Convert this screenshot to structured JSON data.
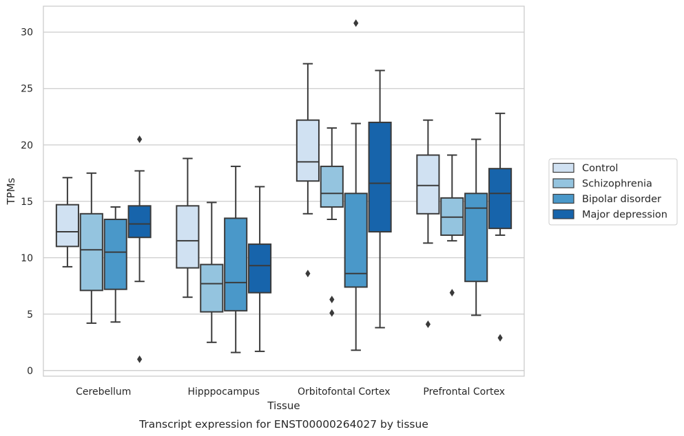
{
  "chart_data": {
    "type": "box",
    "caption": "Transcript expression for ENST00000264027 by tissue",
    "xlabel": "Tissue",
    "ylabel": "TPMs",
    "ylim": [
      -0.5,
      32.3
    ],
    "yticks": [
      0,
      5,
      10,
      15,
      20,
      25,
      30
    ],
    "grid": "horizontal",
    "legend_position": "right",
    "categories": [
      "Cerebellum",
      "Hipppocampus",
      "Orbitofontal Cortex",
      "Prefrontal Cortex"
    ],
    "series": [
      {
        "name": "Control",
        "color": "#d0e1f2",
        "boxes": [
          {
            "min": 9.2,
            "q1": 11.0,
            "median": 12.3,
            "q3": 14.7,
            "max": 17.1,
            "outliers": []
          },
          {
            "min": 6.5,
            "q1": 9.1,
            "median": 11.5,
            "q3": 14.6,
            "max": 18.8,
            "outliers": []
          },
          {
            "min": 13.9,
            "q1": 16.8,
            "median": 18.5,
            "q3": 22.2,
            "max": 27.2,
            "outliers": [
              8.6
            ]
          },
          {
            "min": 11.3,
            "q1": 13.9,
            "median": 16.4,
            "q3": 19.1,
            "max": 22.2,
            "outliers": [
              4.1
            ]
          }
        ]
      },
      {
        "name": "Schizophrenia",
        "color": "#94c4df",
        "boxes": [
          {
            "min": 4.2,
            "q1": 7.1,
            "median": 10.7,
            "q3": 13.9,
            "max": 17.5,
            "outliers": []
          },
          {
            "min": 2.5,
            "q1": 5.2,
            "median": 7.7,
            "q3": 9.4,
            "max": 14.9,
            "outliers": []
          },
          {
            "min": 13.4,
            "q1": 14.5,
            "median": 15.7,
            "q3": 18.1,
            "max": 21.5,
            "outliers": [
              6.3,
              5.1
            ]
          },
          {
            "min": 11.5,
            "q1": 12.0,
            "median": 13.6,
            "q3": 15.3,
            "max": 19.1,
            "outliers": [
              6.9
            ]
          }
        ]
      },
      {
        "name": "Bipolar disorder",
        "color": "#4a98c9",
        "boxes": [
          {
            "min": 4.3,
            "q1": 7.2,
            "median": 10.5,
            "q3": 13.4,
            "max": 14.5,
            "outliers": []
          },
          {
            "min": 1.6,
            "q1": 5.3,
            "median": 7.8,
            "q3": 13.5,
            "max": 18.1,
            "outliers": []
          },
          {
            "min": 1.8,
            "q1": 7.4,
            "median": 8.6,
            "q3": 15.7,
            "max": 21.9,
            "outliers": [
              30.8
            ]
          },
          {
            "min": 4.9,
            "q1": 7.9,
            "median": 14.4,
            "q3": 15.7,
            "max": 20.5,
            "outliers": []
          }
        ]
      },
      {
        "name": "Major depression",
        "color": "#1764ab",
        "boxes": [
          {
            "min": 7.9,
            "q1": 11.8,
            "median": 13.0,
            "q3": 14.6,
            "max": 17.7,
            "outliers": [
              20.5,
              1.0
            ]
          },
          {
            "min": 1.7,
            "q1": 6.9,
            "median": 9.3,
            "q3": 11.2,
            "max": 16.3,
            "outliers": []
          },
          {
            "min": 3.8,
            "q1": 12.3,
            "median": 16.6,
            "q3": 22.0,
            "max": 26.6,
            "outliers": []
          },
          {
            "min": 12.0,
            "q1": 12.6,
            "median": 15.7,
            "q3": 17.9,
            "max": 22.8,
            "outliers": [
              2.9
            ]
          }
        ]
      }
    ]
  }
}
